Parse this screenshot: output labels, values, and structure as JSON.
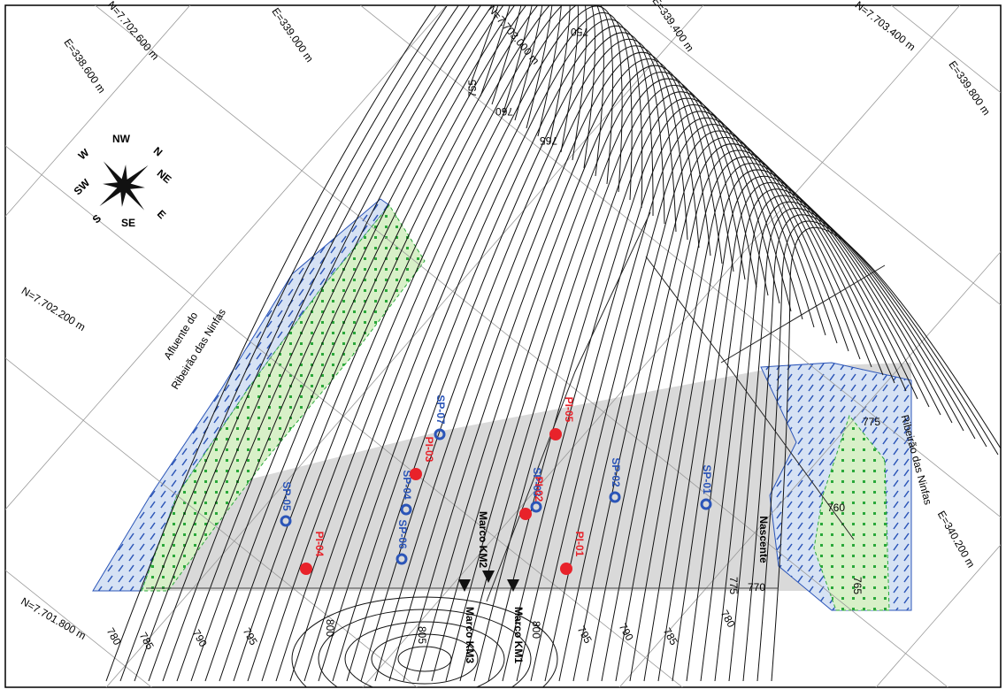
{
  "grid_labels": [
    "N=7.702.600 m",
    "E=338.600 m",
    "E=339.000 m",
    "N=7.703.000 m",
    "E=339.400 m",
    "N=7.703.400 m",
    "E=339.800 m",
    "N=7.702.200 m",
    "N=7.701.800 m",
    "E=340.200 m"
  ],
  "compass": [
    "W",
    "NW",
    "N",
    "NE",
    "E",
    "SE",
    "S",
    "SW"
  ],
  "contour_labels": [
    "750",
    "755",
    "760",
    "765",
    "775",
    "760",
    "765",
    "770",
    "775",
    "780",
    "785",
    "790",
    "795",
    "800",
    "805",
    "800",
    "795",
    "790",
    "785",
    "780"
  ],
  "sampling_points": [
    "SP-01",
    "SP-02",
    "SP-03",
    "SP-04",
    "SP-05",
    "SP-06",
    "SP-07"
  ],
  "pi_points": [
    "PI-01",
    "PI-02",
    "PI-03",
    "PI-04",
    "PI-05"
  ],
  "markers": [
    "Marco KM1",
    "Marco KM2",
    "Marco KM3"
  ],
  "source": "Nascente",
  "streams": [
    "Afluente do",
    "Ribeirão das Ninfas",
    "Ribeirão das Ninfas"
  ]
}
